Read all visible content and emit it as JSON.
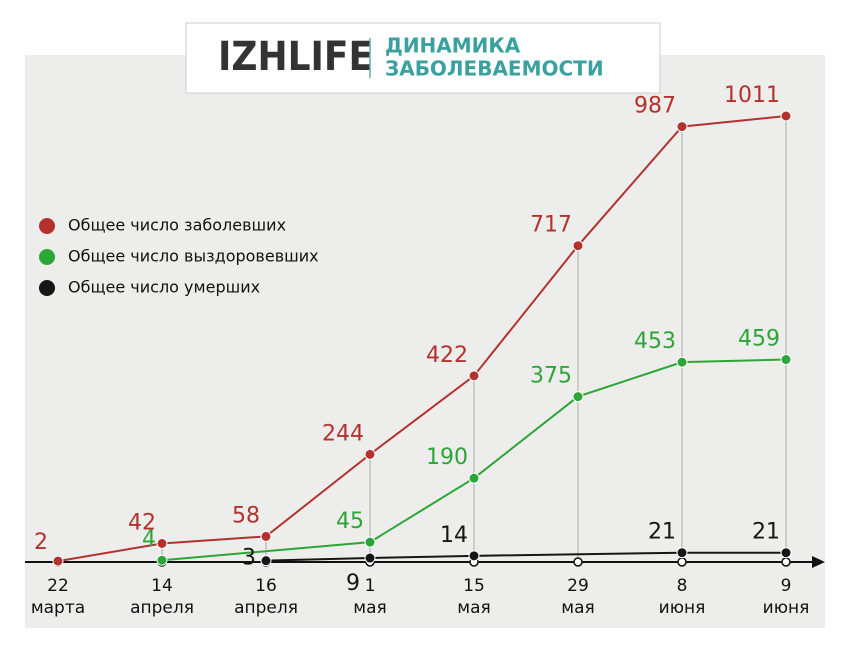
{
  "chart_data": {
    "type": "line",
    "title": "IZHLIFE",
    "subtitle": [
      "ДИНАМИКА",
      "ЗАБОЛЕВАЕМОСТИ"
    ],
    "categories": [
      [
        "22",
        "марта"
      ],
      [
        "14",
        "апреля"
      ],
      [
        "16",
        "апреля"
      ],
      [
        "1",
        "мая"
      ],
      [
        "15",
        "мая"
      ],
      [
        "29",
        "мая"
      ],
      [
        "8",
        "июня"
      ],
      [
        "9",
        "июня"
      ]
    ],
    "series": [
      {
        "name": "Общее число заболевших",
        "color": "#b3322d",
        "x": [
          0,
          1,
          2,
          3,
          4,
          5,
          6,
          7
        ],
        "values": [
          2,
          42,
          58,
          244,
          422,
          717,
          987,
          1011
        ]
      },
      {
        "name": "Общее число выздоровевших",
        "color": "#2ba637",
        "x": [
          1,
          3,
          4,
          5,
          6,
          7
        ],
        "values": [
          4,
          45,
          190,
          375,
          453,
          459
        ]
      },
      {
        "name": "Общее число умерших",
        "color": "#161616",
        "x": [
          2,
          3,
          4,
          6,
          7
        ],
        "values": [
          3,
          9,
          14,
          21,
          21
        ]
      }
    ]
  }
}
